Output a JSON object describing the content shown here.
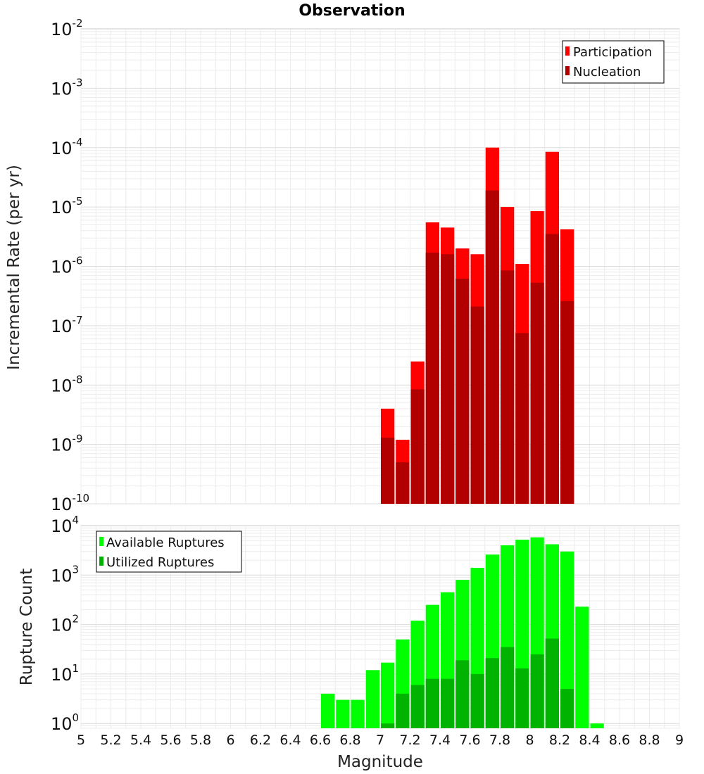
{
  "chart_data": [
    {
      "type": "bar",
      "title": "Observation",
      "xlabel": "",
      "ylabel": "Incremental Rate (per yr)",
      "yscale": "log",
      "ylim": [
        1e-10,
        0.01
      ],
      "xlim": [
        5,
        9
      ],
      "bin_width": 0.1,
      "grid": true,
      "legend_position": "top-right",
      "y_ticks": [
        {
          "base": "10",
          "exp": "-10",
          "value": 1e-10
        },
        {
          "base": "10",
          "exp": "-9",
          "value": 1e-09
        },
        {
          "base": "10",
          "exp": "-8",
          "value": 1e-08
        },
        {
          "base": "10",
          "exp": "-7",
          "value": 1e-07
        },
        {
          "base": "10",
          "exp": "-6",
          "value": 1e-06
        },
        {
          "base": "10",
          "exp": "-5",
          "value": 1e-05
        },
        {
          "base": "10",
          "exp": "-4",
          "value": 0.0001
        },
        {
          "base": "10",
          "exp": "-3",
          "value": 0.001
        },
        {
          "base": "10",
          "exp": "-2",
          "value": 0.01
        }
      ],
      "series": [
        {
          "name": "Participation",
          "color": "#ff0000",
          "x": [
            7.05,
            7.15,
            7.25,
            7.35,
            7.45,
            7.55,
            7.65,
            7.75,
            7.85,
            7.95,
            8.05,
            8.15,
            8.25
          ],
          "values": [
            4e-09,
            1.2e-09,
            2.5e-08,
            5.5e-06,
            4.5e-06,
            2e-06,
            1.6e-06,
            0.0001,
            1e-05,
            1.1e-06,
            8.5e-06,
            8.5e-05,
            4.2e-06
          ]
        },
        {
          "name": "Nucleation",
          "color": "#b20000",
          "x": [
            7.05,
            7.15,
            7.25,
            7.35,
            7.45,
            7.55,
            7.65,
            7.75,
            7.85,
            7.95,
            8.05,
            8.15,
            8.25
          ],
          "values": [
            1.3e-09,
            5e-10,
            8.5e-09,
            1.7e-06,
            1.6e-06,
            6.2e-07,
            2.1e-07,
            1.9e-05,
            8.5e-07,
            7.5e-08,
            5.3e-07,
            3.5e-06,
            2.6e-07
          ]
        }
      ]
    },
    {
      "type": "bar",
      "title": "",
      "xlabel": "Magnitude",
      "ylabel": "Rupture Count",
      "yscale": "log",
      "ylim": [
        0.8,
        10000
      ],
      "xlim": [
        5,
        9
      ],
      "bin_width": 0.1,
      "grid": true,
      "legend_position": "top-left",
      "y_ticks": [
        {
          "base": "10",
          "exp": "0",
          "value": 1
        },
        {
          "base": "10",
          "exp": "1",
          "value": 10
        },
        {
          "base": "10",
          "exp": "2",
          "value": 100
        },
        {
          "base": "10",
          "exp": "3",
          "value": 1000
        },
        {
          "base": "10",
          "exp": "4",
          "value": 10000
        }
      ],
      "x_ticks": [
        "5",
        "5.2",
        "5.4",
        "5.6",
        "5.8",
        "6",
        "6.2",
        "6.4",
        "6.6",
        "6.8",
        "7",
        "7.2",
        "7.4",
        "7.6",
        "7.8",
        "8",
        "8.2",
        "8.4",
        "8.6",
        "8.8",
        "9"
      ],
      "series": [
        {
          "name": "Available Ruptures",
          "color": "#00ff00",
          "x": [
            6.65,
            6.75,
            6.85,
            6.95,
            7.05,
            7.15,
            7.25,
            7.35,
            7.45,
            7.55,
            7.65,
            7.75,
            7.85,
            7.95,
            8.05,
            8.15,
            8.25,
            8.35,
            8.45
          ],
          "values": [
            4,
            3,
            3,
            12,
            17,
            50,
            120,
            250,
            450,
            800,
            1400,
            2600,
            4000,
            5200,
            5800,
            4200,
            3000,
            230,
            1
          ]
        },
        {
          "name": "Utilized Ruptures",
          "color": "#00b300",
          "x": [
            7.05,
            7.15,
            7.25,
            7.35,
            7.45,
            7.55,
            7.65,
            7.75,
            7.85,
            7.95,
            8.05,
            8.15,
            8.25
          ],
          "values": [
            1,
            4,
            6,
            8,
            8,
            19,
            10,
            21,
            35,
            13,
            25,
            52,
            5
          ]
        }
      ]
    }
  ]
}
